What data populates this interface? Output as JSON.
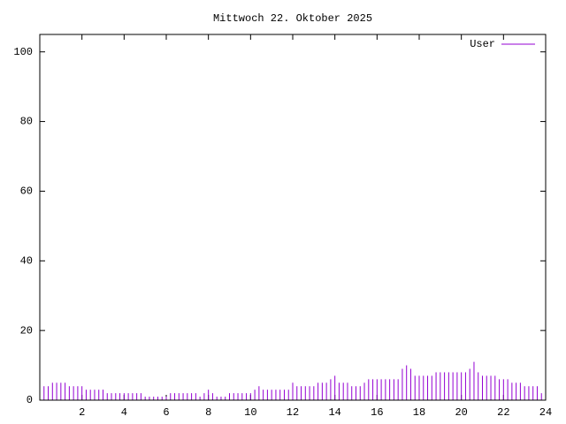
{
  "chart_data": {
    "type": "impulses",
    "title": "Mittwoch 22. Oktober 2025",
    "xlim": [
      0,
      24
    ],
    "xticks": [
      2,
      4,
      6,
      8,
      10,
      12,
      14,
      16,
      18,
      20,
      22,
      24
    ],
    "ylim": [
      0,
      105
    ],
    "yticks": [
      0,
      20,
      40,
      60,
      80,
      100
    ],
    "legend": "top-right",
    "series": [
      {
        "name": "User",
        "color": "#9400d3",
        "x": [
          0,
          0.2,
          0.4,
          0.6,
          0.8,
          1,
          1.2,
          1.4,
          1.6,
          1.8,
          2,
          2.2,
          2.4,
          2.6,
          2.8,
          3,
          3.2,
          3.4,
          3.6,
          3.8,
          4,
          4.2,
          4.4,
          4.6,
          4.8,
          5,
          5.2,
          5.4,
          5.6,
          5.8,
          6,
          6.2,
          6.4,
          6.6,
          6.8,
          7,
          7.2,
          7.4,
          7.6,
          7.8,
          8,
          8.2,
          8.4,
          8.6,
          8.8,
          9,
          9.2,
          9.4,
          9.6,
          9.8,
          10,
          10.2,
          10.4,
          10.6,
          10.8,
          11,
          11.2,
          11.4,
          11.6,
          11.8,
          12,
          12.2,
          12.4,
          12.6,
          12.8,
          13,
          13.2,
          13.4,
          13.6,
          13.8,
          14,
          14.2,
          14.4,
          14.6,
          14.8,
          15,
          15.2,
          15.4,
          15.6,
          15.8,
          16,
          16.2,
          16.4,
          16.6,
          16.8,
          17,
          17.2,
          17.4,
          17.6,
          17.8,
          18,
          18.2,
          18.4,
          18.6,
          18.8,
          19,
          19.2,
          19.4,
          19.6,
          19.8,
          20,
          20.2,
          20.4,
          20.6,
          20.8,
          21,
          21.2,
          21.4,
          21.6,
          21.8,
          22,
          22.2,
          22.4,
          22.6,
          22.8,
          23,
          23.2,
          23.4,
          23.6,
          23.8
        ],
        "values": [
          7,
          4,
          4,
          5,
          5,
          5,
          5,
          4,
          4,
          4,
          4,
          3,
          3,
          3,
          3,
          3,
          2,
          2,
          2,
          2,
          2,
          2,
          2,
          2,
          2,
          1,
          1,
          1,
          1,
          1,
          1,
          2,
          2,
          2,
          2,
          2,
          2,
          2,
          1,
          2,
          3,
          2,
          1,
          1,
          1,
          2,
          2,
          2,
          2,
          2,
          2,
          3,
          4,
          3,
          3,
          3,
          3,
          3,
          3,
          3,
          5,
          4,
          4,
          4,
          4,
          4,
          5,
          5,
          5,
          6,
          7,
          5,
          5,
          5,
          4,
          4,
          4,
          5,
          6,
          6,
          6,
          6,
          6,
          6,
          6,
          6,
          9,
          10,
          9,
          7,
          7,
          7,
          7,
          7,
          8,
          8,
          8,
          8,
          8,
          8,
          8,
          8,
          9,
          11,
          8,
          7,
          7,
          7,
          7,
          6,
          6,
          6,
          5,
          5,
          5,
          4,
          4,
          4,
          4,
          2
        ]
      }
    ]
  }
}
